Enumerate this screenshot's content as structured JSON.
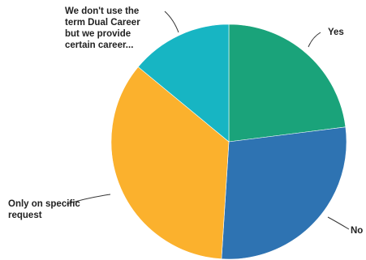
{
  "chart_data": {
    "type": "pie",
    "title": "",
    "start_angle_deg": 0,
    "direction": "clockwise",
    "slices": [
      {
        "label": "Yes",
        "value": 23,
        "color": "#1aa37a"
      },
      {
        "label": "No",
        "value": 28,
        "color": "#2e73b2"
      },
      {
        "label": "Only on specific request",
        "value": 35,
        "color": "#fbb12d"
      },
      {
        "label": "We don't use the term Dual Career but we provide certain career...",
        "value": 14,
        "color": "#17b5c3"
      }
    ],
    "labels_display": [
      [
        "Yes"
      ],
      [
        "No"
      ],
      [
        "Only on specific",
        "request"
      ],
      [
        "We don't use the",
        "term Dual Career",
        "but we provide",
        "certain career..."
      ]
    ]
  }
}
